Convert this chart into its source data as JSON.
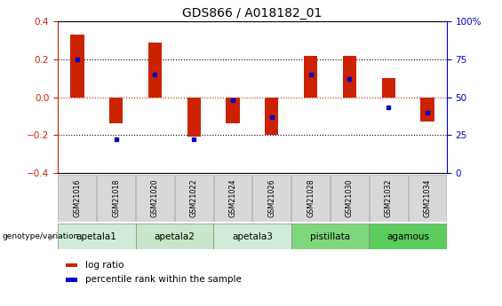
{
  "title": "GDS866 / A018182_01",
  "samples": [
    "GSM21016",
    "GSM21018",
    "GSM21020",
    "GSM21022",
    "GSM21024",
    "GSM21026",
    "GSM21028",
    "GSM21030",
    "GSM21032",
    "GSM21034"
  ],
  "log_ratios": [
    0.33,
    -0.14,
    0.29,
    -0.21,
    -0.14,
    -0.2,
    0.22,
    0.22,
    0.1,
    -0.13
  ],
  "percentile_ranks": [
    75,
    22,
    65,
    22,
    48,
    37,
    65,
    62,
    43,
    40
  ],
  "genotype_groups": [
    {
      "label": "apetala1",
      "samples": [
        0,
        1
      ],
      "color": "#d0ecd8"
    },
    {
      "label": "apetala2",
      "samples": [
        2,
        3
      ],
      "color": "#c8e6c9"
    },
    {
      "label": "apetala3",
      "samples": [
        4,
        5
      ],
      "color": "#d0ecd8"
    },
    {
      "label": "pistillata",
      "samples": [
        6,
        7
      ],
      "color": "#7dd87d"
    },
    {
      "label": "agamous",
      "samples": [
        8,
        9
      ],
      "color": "#5ccc5c"
    }
  ],
  "ylim": [
    -0.4,
    0.4
  ],
  "y2lim": [
    0,
    100
  ],
  "yticks": [
    -0.4,
    -0.2,
    0.0,
    0.2,
    0.4
  ],
  "y2ticks": [
    0,
    25,
    50,
    75,
    100
  ],
  "y2ticklabels": [
    "0",
    "25",
    "50",
    "75",
    "100%"
  ],
  "bar_color": "#cc2200",
  "dot_color": "#0000cc",
  "bar_width": 0.35,
  "hline_color_zero": "#cc2200",
  "hline_color_dotted": "#000000",
  "left_axis_color": "#cc2200",
  "right_axis_color": "#0000cc",
  "legend_log_ratio_color": "#cc2200",
  "legend_percentile_color": "#0000cc",
  "background_color": "#ffffff",
  "plot_bg_color": "#ffffff",
  "sample_box_color": "#d8d8d8",
  "sample_box_edge": "#aaaaaa"
}
